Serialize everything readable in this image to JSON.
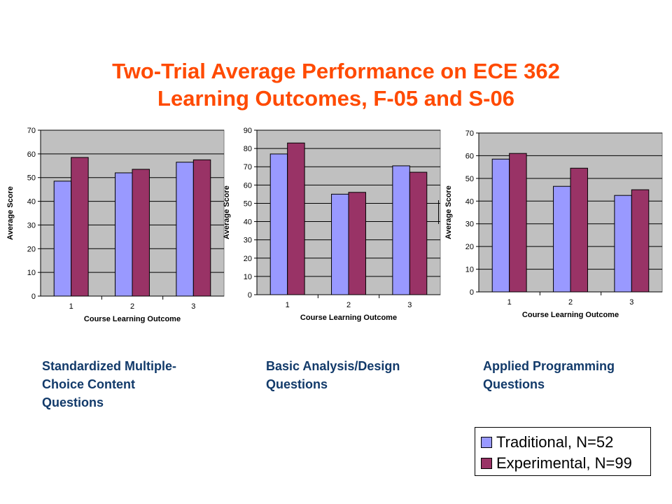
{
  "title": {
    "line1": "Two-Trial Average Performance on ECE 362",
    "line2": "Learning Outcomes, F-05 and S-06"
  },
  "captions": [
    {
      "line1": "Standardized Multiple-",
      "line2": "Choice Content",
      "line3": "Questions"
    },
    {
      "line1": "Basic Analysis/Design",
      "line2": "Questions"
    },
    {
      "line1": "Applied Programming",
      "line2": "Questions"
    }
  ],
  "legend": {
    "items": [
      {
        "label": "Traditional, N=52",
        "color": "#9999ff"
      },
      {
        "label": "Experimental, N=99",
        "color": "#993366"
      }
    ]
  },
  "colors": {
    "plot_bg": "#c0c0c0",
    "title": "#ff4a00",
    "caption": "#123a6a"
  },
  "chart_data": [
    {
      "type": "bar",
      "categories": [
        "1",
        "2",
        "3"
      ],
      "xlabel": "Course Learning Outcome",
      "ylabel": "Average Score",
      "ylim": [
        0,
        70
      ],
      "yticks": [
        0,
        10,
        20,
        30,
        40,
        50,
        60,
        70
      ],
      "grid": true,
      "series": [
        {
          "name": "Traditional, N=52",
          "values": [
            48.5,
            52,
            56.5
          ]
        },
        {
          "name": "Experimental, N=99",
          "values": [
            58.5,
            53.5,
            57.5
          ]
        }
      ]
    },
    {
      "type": "bar",
      "categories": [
        "1",
        "2",
        "3"
      ],
      "xlabel": "Course Learning Outcome",
      "ylabel": "Average Score",
      "ylim": [
        0,
        90
      ],
      "yticks": [
        0,
        10,
        20,
        30,
        40,
        50,
        60,
        70,
        80,
        90
      ],
      "grid": true,
      "series": [
        {
          "name": "Traditional, N=52",
          "values": [
            77,
            55,
            70.5
          ]
        },
        {
          "name": "Experimental, N=99",
          "values": [
            83,
            56,
            67
          ]
        }
      ]
    },
    {
      "type": "bar",
      "categories": [
        "1",
        "2",
        "3"
      ],
      "xlabel": "Course Learning Outcome",
      "ylabel": "Average Score",
      "ylim": [
        0,
        70
      ],
      "yticks": [
        0,
        10,
        20,
        30,
        40,
        50,
        60,
        70
      ],
      "grid": true,
      "series": [
        {
          "name": "Traditional, N=52",
          "values": [
            58.5,
            46.5,
            42.5
          ]
        },
        {
          "name": "Experimental, N=99",
          "values": [
            61,
            54.5,
            45
          ]
        }
      ]
    }
  ]
}
